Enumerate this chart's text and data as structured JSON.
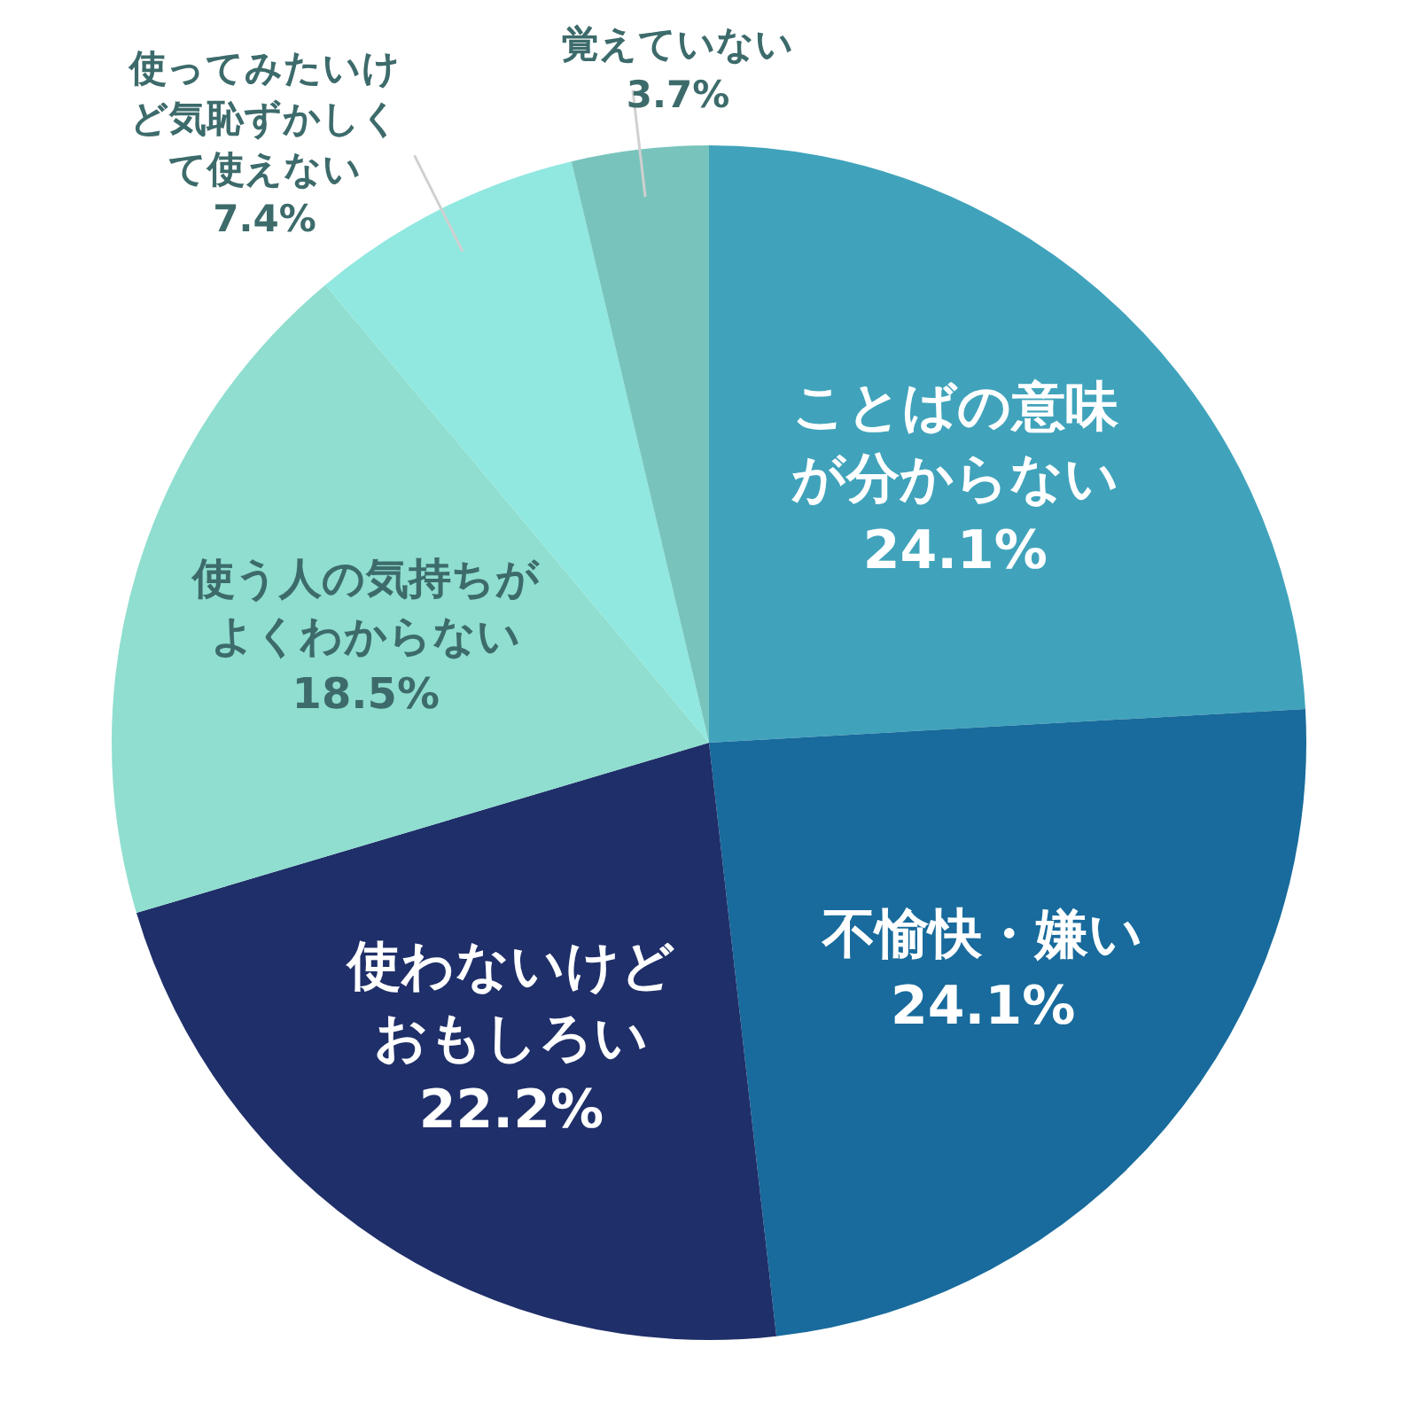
{
  "chart_data": {
    "type": "pie",
    "categories": [
      "ことばの意味が分からない",
      "不愉快・嫌い",
      "使わないけどおもしろい",
      "使う人の気持ちがよくわからない",
      "使ってみたいけど気恥ずかしくて使えない",
      "覚えていない"
    ],
    "values": [
      24.1,
      24.1,
      22.2,
      18.5,
      7.4,
      3.7
    ],
    "value_labels": [
      "24.1%",
      "24.1%",
      "22.2%",
      "18.5%",
      "7.4%",
      "3.7%"
    ],
    "colors": [
      "#40a3bb",
      "#186b9c",
      "#1f2f69",
      "#8fdecf",
      "#90e8e0",
      "#78c4bd"
    ],
    "legend": false
  }
}
